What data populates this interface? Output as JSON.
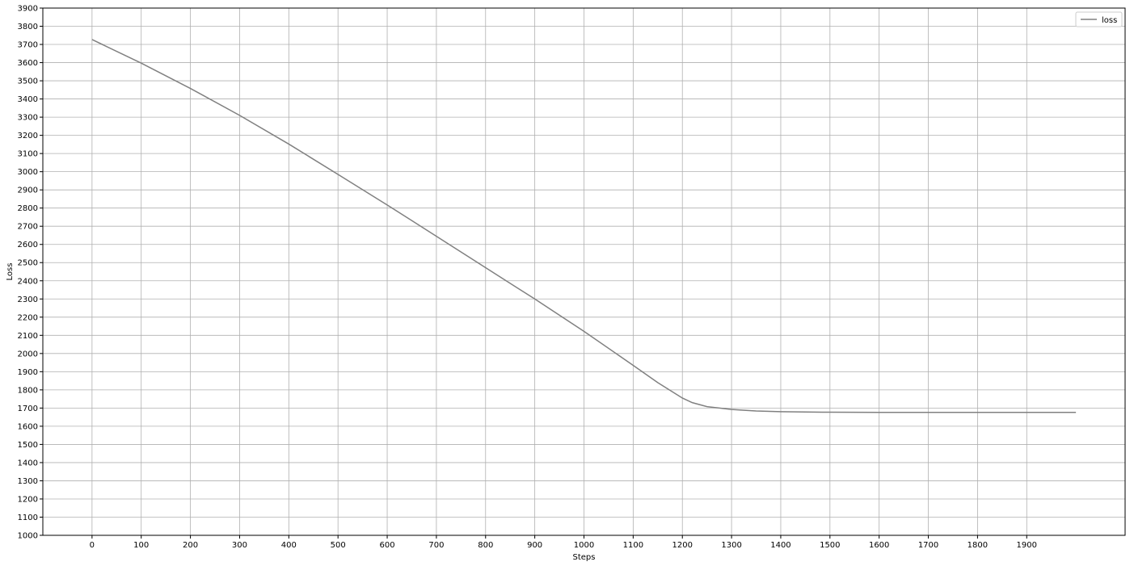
{
  "chart_data": {
    "type": "line",
    "title": "",
    "xlabel": "Steps",
    "ylabel": "Loss",
    "xlim": [
      -100,
      2100
    ],
    "ylim": [
      1000,
      3900
    ],
    "xticks": [
      0,
      100,
      200,
      300,
      400,
      500,
      600,
      700,
      800,
      900,
      1000,
      1100,
      1200,
      1300,
      1400,
      1500,
      1600,
      1700,
      1800,
      1900
    ],
    "yticks": [
      1000,
      1100,
      1200,
      1300,
      1400,
      1500,
      1600,
      1700,
      1800,
      1900,
      2000,
      2100,
      2200,
      2300,
      2400,
      2500,
      2600,
      2700,
      2800,
      2900,
      3000,
      3100,
      3200,
      3300,
      3400,
      3500,
      3600,
      3700,
      3800,
      3900
    ],
    "grid": true,
    "legend": "top-right",
    "series": [
      {
        "name": "loss",
        "color": "#808080",
        "x": [
          0,
          100,
          200,
          300,
          400,
          500,
          600,
          700,
          800,
          900,
          1000,
          1100,
          1150,
          1200,
          1220,
          1250,
          1300,
          1350,
          1400,
          1500,
          1600,
          1700,
          1800,
          1900,
          2000
        ],
        "y": [
          3727,
          3597,
          3458,
          3310,
          3152,
          2985,
          2817,
          2645,
          2472,
          2300,
          2122,
          1935,
          1840,
          1755,
          1730,
          1708,
          1692,
          1684,
          1680,
          1677,
          1676,
          1676,
          1676,
          1676,
          1676
        ]
      }
    ]
  }
}
